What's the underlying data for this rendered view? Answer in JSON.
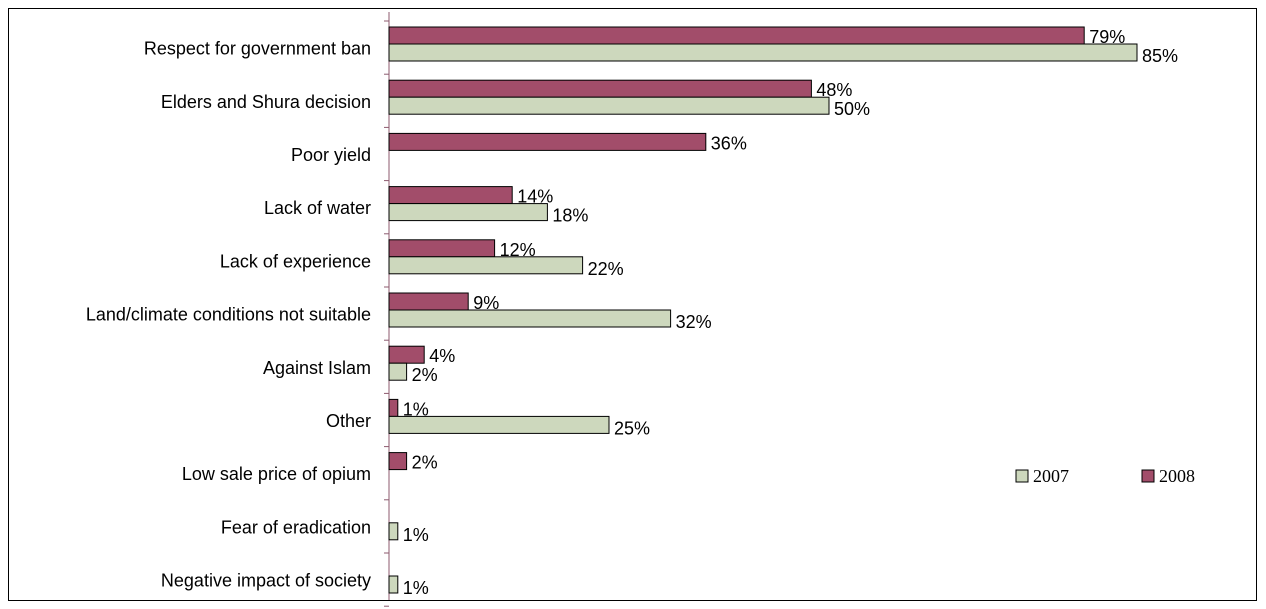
{
  "chart_data": {
    "type": "bar",
    "orientation": "horizontal",
    "categories": [
      "Respect for government ban",
      "Elders and Shura decision",
      "Poor yield",
      "Lack of water",
      "Lack of experience",
      "Land/climate conditions not suitable",
      "Against Islam",
      "Other",
      "Low sale price of opium",
      "Fear of eradication",
      "Negative impact of society"
    ],
    "series": [
      {
        "name": "2008",
        "color": "#A24D6A",
        "values": [
          79,
          48,
          36,
          14,
          12,
          9,
          4,
          1,
          2,
          null,
          null
        ],
        "labels": [
          "79%",
          "48%",
          "36%",
          "14%",
          "12%",
          "9%",
          "4%",
          "1%",
          "2%",
          "",
          ""
        ]
      },
      {
        "name": "2007",
        "color": "#CDD8BD",
        "values": [
          85,
          50,
          null,
          18,
          22,
          32,
          2,
          25,
          null,
          1,
          1
        ],
        "labels": [
          "85%",
          "50%",
          "",
          "18%",
          "22%",
          "32%",
          "2%",
          "25%",
          "",
          "1%",
          "1%"
        ]
      }
    ],
    "legend": {
      "position": "right",
      "entries": [
        {
          "name": "2007",
          "color": "#CDD8BD"
        },
        {
          "name": "2008",
          "color": "#A24D6A"
        }
      ]
    },
    "xlim": [
      0,
      100
    ],
    "grid": false,
    "title": "",
    "xlabel": "",
    "ylabel": ""
  }
}
